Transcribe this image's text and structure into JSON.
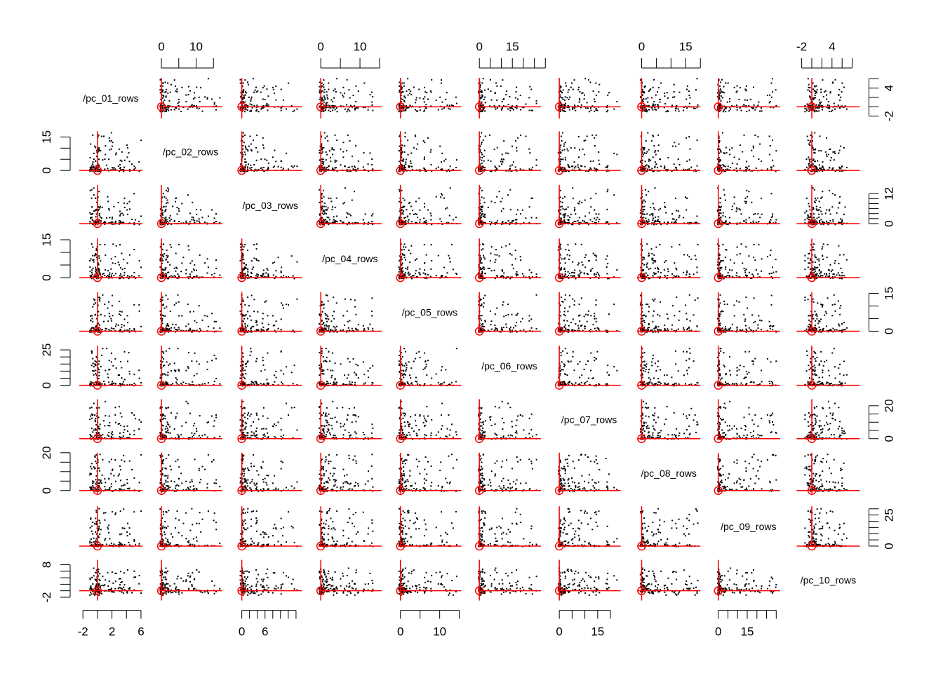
{
  "chart_data": {
    "type": "scatter",
    "layout": "pairs-matrix",
    "variables": [
      "vpc_01_rows",
      "vpc_02_rows",
      "vpc_03_rows",
      "vpc_04_rows",
      "vpc_05_rows",
      "vpc_06_rows",
      "vpc_07_rows",
      "vpc_08_rows",
      "vpc_09_rows",
      "vpc_10_rows"
    ],
    "diag_labels": [
      "/pc_01_rows",
      "/pc_02_rows",
      "/pc_03_rows",
      "/pc_04_rows",
      "/pc_05_rows",
      "/pc_06_rows",
      "/pc_07_rows",
      "/pc_08_rows",
      "/pc_09_rows",
      "/pc_10_rows"
    ],
    "ranges": [
      [
        -2.5,
        6.2
      ],
      [
        -0.7,
        17.5
      ],
      [
        -0.8,
        15.5
      ],
      [
        -0.6,
        15.5
      ],
      [
        -0.6,
        15.5
      ],
      [
        -0.7,
        28
      ],
      [
        -0.7,
        24
      ],
      [
        -1.5,
        20
      ],
      [
        -0.7,
        32
      ],
      [
        -3,
        9.5
      ]
    ],
    "top_axes": [
      {
        "var": 1,
        "ticks": [
          0,
          5,
          10,
          15
        ],
        "labels": [
          "0",
          "10"
        ],
        "label_values": [
          0,
          10
        ]
      },
      {
        "var": 3,
        "ticks": [
          0,
          5,
          10,
          15
        ],
        "labels": [
          "0",
          "10"
        ],
        "label_values": [
          0,
          10
        ]
      },
      {
        "var": 5,
        "ticks": [
          0,
          5,
          10,
          15,
          20,
          25,
          30
        ],
        "labels": [
          "0",
          "15"
        ],
        "label_values": [
          0,
          15
        ]
      },
      {
        "var": 7,
        "ticks": [
          0,
          5,
          10,
          15,
          20
        ],
        "labels": [
          "0",
          "15"
        ],
        "label_values": [
          0,
          15
        ]
      },
      {
        "var": 9,
        "ticks": [
          -2,
          0,
          2,
          4,
          6,
          8
        ],
        "labels": [
          "-2",
          "4"
        ],
        "label_values": [
          -2,
          4
        ]
      }
    ],
    "bottom_axes": [
      {
        "var": 0,
        "ticks": [
          -2,
          0,
          2,
          4,
          6
        ],
        "labels": [
          "-2",
          "2",
          "6"
        ],
        "label_values": [
          -2,
          2,
          6
        ]
      },
      {
        "var": 2,
        "ticks": [
          0,
          2,
          4,
          6,
          8,
          10,
          12,
          14
        ],
        "labels": [
          "0",
          "6"
        ],
        "label_values": [
          0,
          6
        ]
      },
      {
        "var": 4,
        "ticks": [
          0,
          5,
          10,
          15
        ],
        "labels": [
          "0",
          "10"
        ],
        "label_values": [
          0,
          10
        ]
      },
      {
        "var": 6,
        "ticks": [
          0,
          5,
          10,
          15,
          20
        ],
        "labels": [
          "0",
          "15"
        ],
        "label_values": [
          0,
          15
        ]
      },
      {
        "var": 8,
        "ticks": [
          0,
          5,
          10,
          15,
          20,
          25,
          30
        ],
        "labels": [
          "0",
          "15"
        ],
        "label_values": [
          0,
          15
        ]
      }
    ],
    "left_axes": [
      {
        "var": 1,
        "ticks": [
          0,
          5,
          10,
          15
        ],
        "labels": [
          "0",
          "15"
        ],
        "label_values": [
          0,
          15
        ]
      },
      {
        "var": 3,
        "ticks": [
          0,
          5,
          10,
          15
        ],
        "labels": [
          "0",
          "15"
        ],
        "label_values": [
          0,
          15
        ]
      },
      {
        "var": 5,
        "ticks": [
          0,
          5,
          10,
          15,
          20,
          25
        ],
        "labels": [
          "0",
          "25"
        ],
        "label_values": [
          0,
          25
        ]
      },
      {
        "var": 7,
        "ticks": [
          0,
          5,
          10,
          15,
          20
        ],
        "labels": [
          "0",
          "20"
        ],
        "label_values": [
          0,
          20
        ]
      },
      {
        "var": 9,
        "ticks": [
          -2,
          0,
          2,
          4,
          6,
          8
        ],
        "labels": [
          "-2",
          "8"
        ],
        "label_values": [
          -2,
          8
        ]
      }
    ],
    "right_axes": [
      {
        "var": 0,
        "ticks": [
          -2,
          0,
          2,
          4,
          6
        ],
        "labels": [
          "-2",
          "4"
        ],
        "label_values": [
          -2,
          4
        ]
      },
      {
        "var": 2,
        "ticks": [
          0,
          2,
          4,
          6,
          8,
          10,
          12
        ],
        "labels": [
          "0",
          "12"
        ],
        "label_values": [
          0,
          12
        ]
      },
      {
        "var": 4,
        "ticks": [
          0,
          5,
          10,
          15
        ],
        "labels": [
          "0",
          "15"
        ],
        "label_values": [
          0,
          15
        ]
      },
      {
        "var": 6,
        "ticks": [
          0,
          5,
          10,
          15,
          20
        ],
        "labels": [
          "0",
          "20"
        ],
        "label_values": [
          0,
          20
        ]
      },
      {
        "var": 8,
        "ticks": [
          0,
          5,
          10,
          15,
          20,
          25,
          30
        ],
        "labels": [
          "0",
          "25"
        ],
        "label_values": [
          0,
          25
        ]
      }
    ],
    "reference_lines": {
      "x": 0,
      "y": 0,
      "color": "#ff0000"
    },
    "origin_marker": {
      "shape": "circle-cross",
      "color": "#ff0000"
    },
    "point_color": "#000000",
    "grid": false,
    "legend": "none"
  }
}
